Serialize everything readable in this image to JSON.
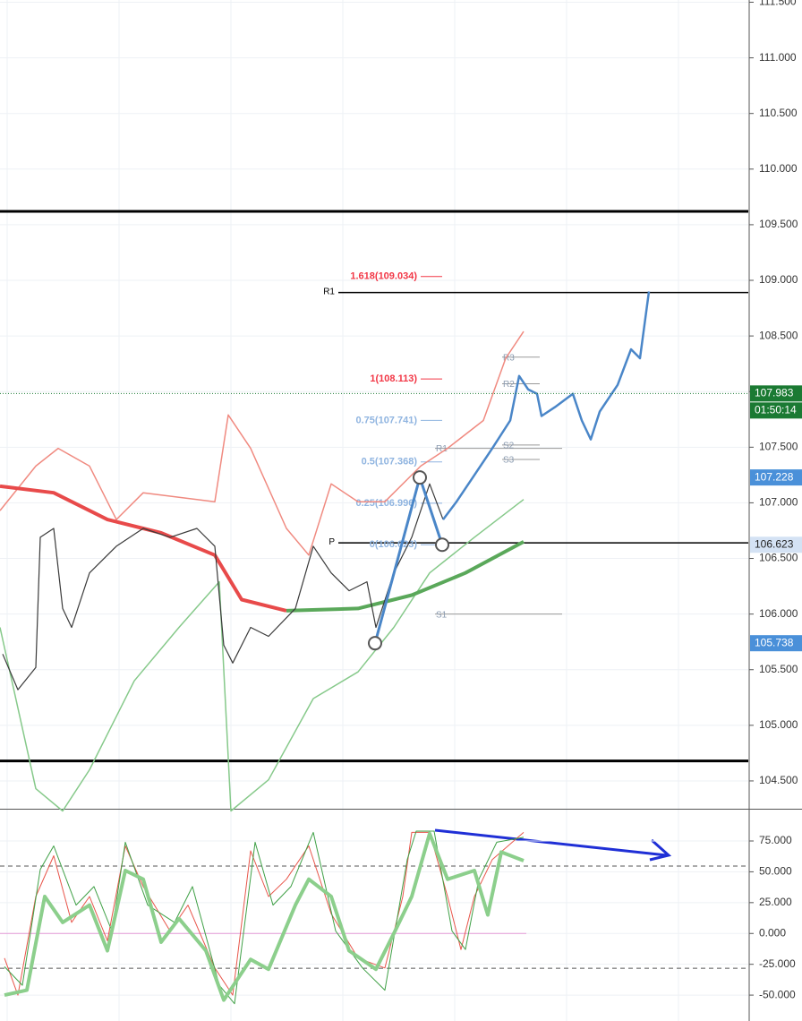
{
  "chart_data": [
    {
      "type": "line",
      "xlim": [
        0,
        836
      ],
      "ylim": [
        104.25,
        111.52
      ],
      "grid": true,
      "yticks": [
        {
          "value": 104.5,
          "label": "104.500"
        },
        {
          "value": 105,
          "label": "105.000"
        },
        {
          "value": 105.5,
          "label": "105.500"
        },
        {
          "value": 106,
          "label": "106.000"
        },
        {
          "value": 106.5,
          "label": "106.500"
        },
        {
          "value": 107,
          "label": "107.000"
        },
        {
          "value": 107.5,
          "label": "107.500"
        },
        {
          "value": 108,
          "label": "108.000"
        },
        {
          "value": 108.5,
          "label": "108.500"
        },
        {
          "value": 109,
          "label": "109.000"
        },
        {
          "value": 109.5,
          "label": "109.500"
        },
        {
          "value": 110,
          "label": "110.000"
        },
        {
          "value": 110.5,
          "label": "110.500"
        },
        {
          "value": 111,
          "label": "111.000"
        },
        {
          "value": 111.5,
          "label": "111.500"
        }
      ],
      "series": [
        {
          "color": "#f08a80",
          "width": 1.5,
          "x": [
            0,
            40,
            65,
            100,
            130,
            160,
            240,
            255,
            280,
            320,
            345,
            370,
            400,
            430,
            470,
            500,
            540,
            565,
            585
          ],
          "values": [
            106.93,
            107.33,
            107.49,
            107.33,
            106.85,
            107.09,
            107.01,
            107.79,
            107.49,
            106.77,
            106.53,
            107.17,
            107.01,
            107.01,
            107.33,
            107.49,
            107.74,
            108.3,
            108.54
          ]
        },
        {
          "color": "#86c98a",
          "width": 1.5,
          "x": [
            0,
            40,
            70,
            100,
            150,
            200,
            245,
            258,
            300,
            350,
            400,
            440,
            480,
            530,
            585
          ],
          "values": [
            105.88,
            104.43,
            104.23,
            104.6,
            105.4,
            105.88,
            106.29,
            104.23,
            104.51,
            105.24,
            105.48,
            105.88,
            106.37,
            106.69,
            107.03
          ]
        },
        {
          "color": "#e84a4a",
          "width": 4,
          "x": [
            0,
            60,
            120,
            180,
            240,
            270,
            320
          ],
          "values": [
            107.15,
            107.09,
            106.85,
            106.73,
            106.53,
            106.13,
            106.03
          ]
        },
        {
          "color": "#5aa85a",
          "width": 4,
          "x": [
            320,
            400,
            460,
            520,
            585
          ],
          "values": [
            106.03,
            106.05,
            106.17,
            106.37,
            106.65
          ]
        },
        {
          "color": "#3a3a3a",
          "width": 1.2,
          "x": [
            3,
            20,
            40,
            45,
            60,
            70,
            80,
            100,
            130,
            160,
            190,
            220,
            240,
            250,
            260,
            280,
            300,
            330,
            350,
            370,
            390,
            410,
            420,
            440,
            460,
            480,
            495
          ],
          "values": [
            105.64,
            105.32,
            105.52,
            106.69,
            106.77,
            106.05,
            105.88,
            106.37,
            106.61,
            106.77,
            106.69,
            106.77,
            106.61,
            105.72,
            105.56,
            105.88,
            105.8,
            106.05,
            106.61,
            106.37,
            106.21,
            106.29,
            105.88,
            106.37,
            106.69,
            107.17,
            106.85
          ]
        },
        {
          "color": "#4a86c8",
          "width": 2.5,
          "x": [
            495,
            510,
            530,
            550,
            570,
            580,
            590,
            600,
            605,
            620,
            640,
            650,
            660,
            670,
            690,
            705,
            715,
            725
          ],
          "values": [
            106.85,
            107.01,
            107.25,
            107.49,
            107.74,
            108.14,
            108.02,
            107.98,
            107.78,
            107.86,
            107.98,
            107.74,
            107.57,
            107.82,
            108.06,
            108.38,
            108.3,
            108.9
          ]
        }
      ],
      "levels": [
        109.62,
        104.68
      ],
      "pivots": [
        {
          "label": "R1",
          "value": 108.89
        },
        {
          "label": "P",
          "value": 106.64
        }
      ],
      "minor_pivots": [
        {
          "label": "R3",
          "value": 108.31
        },
        {
          "label": "R2",
          "value": 108.07
        },
        {
          "label": "R1",
          "value": 107.49
        },
        {
          "label": "S2",
          "value": 107.52
        },
        {
          "label": "S3",
          "value": 107.39
        },
        {
          "label": "S1",
          "value": 106.0
        }
      ],
      "fib": [
        {
          "label": "1.618(109.034)",
          "value": 109.034,
          "color": "#f23645"
        },
        {
          "label": "1(108.113)",
          "value": 108.113,
          "color": "#f23645"
        },
        {
          "label": "0.75(107.741)",
          "value": 107.741,
          "color": "#8fb4e0"
        },
        {
          "label": "0.5(107.368)",
          "value": 107.368,
          "color": "#8fb4e0"
        },
        {
          "label": "0.25(106.996)",
          "value": 106.996,
          "color": "#8fb4e0"
        },
        {
          "label": "0(106.623)",
          "value": 106.623,
          "color": "#8fb4e0"
        }
      ],
      "price_tags": [
        {
          "value": 107.983,
          "label": "107.983",
          "color": "#1b7a33"
        },
        {
          "value": 107.228,
          "label": "107.228",
          "color": "#4a90d9"
        },
        {
          "value": 106.623,
          "label": "106.623",
          "color": "#d4e2f4"
        },
        {
          "value": 105.738,
          "label": "105.738",
          "color": "#4a90d9"
        }
      ],
      "timer": "01:50:14",
      "pattern_x": [
        419,
        469,
        494
      ]
    },
    {
      "type": "line",
      "xlim": [
        0,
        836
      ],
      "ylim": [
        -71,
        99.7
      ],
      "grid": true,
      "yticks": [
        {
          "value": -50,
          "label": "-50.000"
        },
        {
          "value": -25,
          "label": "-25.000"
        },
        {
          "value": 0,
          "label": "0.000"
        },
        {
          "value": 25,
          "label": "25.000"
        },
        {
          "value": 50,
          "label": "50.000"
        },
        {
          "value": 75,
          "label": "75.000"
        }
      ],
      "levels": [
        54.7,
        -28.2
      ],
      "midline": 0,
      "series": [
        {
          "color": "#e8554a",
          "width": 1,
          "x": [
            5,
            20,
            40,
            60,
            80,
            100,
            120,
            140,
            160,
            190,
            210,
            240,
            260,
            280,
            300,
            320,
            345,
            370,
            400,
            430,
            450,
            460,
            480,
            500,
            515,
            530,
            550,
            585
          ],
          "values": [
            -20,
            -50,
            30,
            63,
            9,
            30,
            -6,
            71,
            38,
            2,
            23,
            -28,
            -50,
            67,
            30,
            44,
            71,
            16,
            -20,
            -28,
            30,
            82,
            82,
            30,
            -13,
            30,
            60,
            82
          ]
        },
        {
          "color": "#3fa046",
          "width": 1,
          "x": [
            5,
            25,
            45,
            60,
            85,
            105,
            125,
            140,
            165,
            195,
            215,
            245,
            262,
            285,
            305,
            325,
            350,
            375,
            405,
            430,
            455,
            465,
            485,
            505,
            520,
            535,
            555,
            585
          ],
          "values": [
            -27,
            -42,
            52,
            71,
            23,
            38,
            2,
            74,
            23,
            9,
            38,
            -42,
            -57,
            74,
            23,
            38,
            82,
            2,
            -28,
            -46,
            60,
            83,
            83,
            2,
            -13,
            44,
            74,
            78
          ]
        },
        {
          "color": "#8ccf8c",
          "width": 4,
          "x": [
            5,
            30,
            50,
            70,
            100,
            120,
            140,
            160,
            180,
            200,
            230,
            250,
            280,
            300,
            330,
            345,
            370,
            390,
            420,
            440,
            460,
            480,
            500,
            530,
            545,
            560,
            585
          ],
          "values": [
            -50,
            -46,
            30,
            9,
            23,
            -14,
            51,
            44,
            -7,
            12,
            -14,
            -54,
            -21,
            -29,
            23,
            44,
            30,
            -14,
            -29,
            0,
            30,
            81,
            44,
            51,
            15,
            66,
            59
          ]
        }
      ]
    }
  ]
}
